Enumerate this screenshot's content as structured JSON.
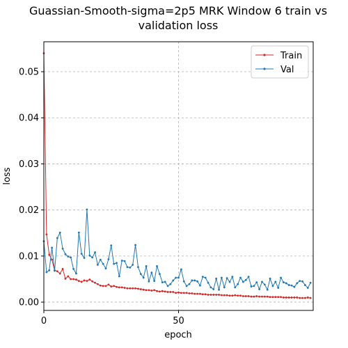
{
  "chart_data": {
    "type": "line",
    "title_lines": [
      "Guassian-Smooth-sigma=2p5 MRK Window 6 train vs",
      "validation loss"
    ],
    "xlabel": "epoch",
    "ylabel": "loss",
    "xlim": [
      0,
      100
    ],
    "ylim": [
      -0.0018,
      0.0565
    ],
    "x_ticks": [
      0,
      50
    ],
    "y_ticks": [
      0.0,
      0.01,
      0.02,
      0.03,
      0.04,
      0.05
    ],
    "x_tick_labels": [
      "0",
      "50"
    ],
    "y_tick_labels": [
      "0.00",
      "0.01",
      "0.02",
      "0.03",
      "0.04",
      "0.05"
    ],
    "grid": true,
    "legend_position": "top-right",
    "series": [
      {
        "name": "Train",
        "color": "#d62728",
        "x": [
          0,
          1,
          2,
          3,
          4,
          5,
          6,
          7,
          8,
          9,
          10,
          11,
          12,
          13,
          14,
          15,
          16,
          17,
          18,
          19,
          20,
          21,
          22,
          23,
          24,
          25,
          26,
          27,
          28,
          29,
          30,
          31,
          32,
          33,
          34,
          35,
          36,
          37,
          38,
          39,
          40,
          41,
          42,
          43,
          44,
          45,
          46,
          47,
          48,
          49,
          50,
          51,
          52,
          53,
          54,
          55,
          56,
          57,
          58,
          59,
          60,
          61,
          62,
          63,
          64,
          65,
          66,
          67,
          68,
          69,
          70,
          71,
          72,
          73,
          74,
          75,
          76,
          77,
          78,
          79,
          80,
          81,
          82,
          83,
          84,
          85,
          86,
          87,
          88,
          89,
          90,
          91,
          92,
          93,
          94,
          95,
          96,
          97,
          98,
          99
        ],
        "values": [
          0.054,
          0.0147,
          0.0103,
          0.0092,
          0.0069,
          0.0067,
          0.0062,
          0.0072,
          0.0051,
          0.0056,
          0.005,
          0.005,
          0.0049,
          0.0046,
          0.0044,
          0.0047,
          0.0046,
          0.0049,
          0.0045,
          0.0042,
          0.0039,
          0.0036,
          0.0035,
          0.0035,
          0.0038,
          0.0034,
          0.0035,
          0.0033,
          0.0032,
          0.0032,
          0.0031,
          0.003,
          0.003,
          0.003,
          0.003,
          0.0029,
          0.0028,
          0.0027,
          0.0026,
          0.0026,
          0.0025,
          0.0026,
          0.0024,
          0.0023,
          0.0024,
          0.0023,
          0.0022,
          0.0022,
          0.0022,
          0.002,
          0.0021,
          0.002,
          0.002,
          0.002,
          0.0019,
          0.0019,
          0.0018,
          0.0018,
          0.0018,
          0.0017,
          0.0017,
          0.0016,
          0.0016,
          0.0016,
          0.0016,
          0.0016,
          0.0015,
          0.0015,
          0.0015,
          0.0014,
          0.0014,
          0.0015,
          0.0014,
          0.0014,
          0.0013,
          0.0013,
          0.0013,
          0.0012,
          0.0012,
          0.0013,
          0.0012,
          0.0012,
          0.0012,
          0.0012,
          0.0011,
          0.0011,
          0.0011,
          0.0011,
          0.0011,
          0.001,
          0.001,
          0.001,
          0.001,
          0.001,
          0.001,
          0.0009,
          0.0009,
          0.0009,
          0.001,
          0.0009
        ]
      },
      {
        "name": "Val",
        "color": "#1f77b4",
        "x": [
          0,
          1,
          2,
          3,
          4,
          5,
          6,
          7,
          8,
          9,
          10,
          11,
          12,
          13,
          14,
          15,
          16,
          17,
          18,
          19,
          20,
          21,
          22,
          23,
          24,
          25,
          26,
          27,
          28,
          29,
          30,
          31,
          32,
          33,
          34,
          35,
          36,
          37,
          38,
          39,
          40,
          41,
          42,
          43,
          44,
          45,
          46,
          47,
          48,
          49,
          50,
          51,
          52,
          53,
          54,
          55,
          56,
          57,
          58,
          59,
          60,
          61,
          62,
          63,
          64,
          65,
          66,
          67,
          68,
          69,
          70,
          71,
          72,
          73,
          74,
          75,
          76,
          77,
          78,
          79,
          80,
          81,
          82,
          83,
          84,
          85,
          86,
          87,
          88,
          89,
          90,
          91,
          92,
          93,
          94,
          95,
          96,
          97,
          98,
          99
        ],
        "values": [
          0.0132,
          0.0065,
          0.0069,
          0.0118,
          0.0068,
          0.0139,
          0.0151,
          0.0116,
          0.0104,
          0.0099,
          0.0097,
          0.0072,
          0.0062,
          0.0151,
          0.0105,
          0.0096,
          0.0201,
          0.0101,
          0.0097,
          0.0108,
          0.0081,
          0.0092,
          0.0083,
          0.0073,
          0.0093,
          0.0123,
          0.0083,
          0.0085,
          0.0056,
          0.009,
          0.0089,
          0.0076,
          0.0075,
          0.0081,
          0.0124,
          0.0076,
          0.0061,
          0.0053,
          0.0078,
          0.0045,
          0.0064,
          0.0046,
          0.0078,
          0.0061,
          0.0043,
          0.0044,
          0.0035,
          0.0039,
          0.0047,
          0.0053,
          0.0053,
          0.0071,
          0.0045,
          0.0035,
          0.0039,
          0.0047,
          0.0047,
          0.0045,
          0.0036,
          0.0055,
          0.0053,
          0.0042,
          0.0032,
          0.0028,
          0.0051,
          0.0027,
          0.0053,
          0.0032,
          0.0052,
          0.0044,
          0.0055,
          0.0032,
          0.0039,
          0.0053,
          0.0044,
          0.0048,
          0.0055,
          0.0034,
          0.0035,
          0.0043,
          0.0028,
          0.0044,
          0.0038,
          0.0027,
          0.0051,
          0.0035,
          0.0044,
          0.0031,
          0.0053,
          0.0043,
          0.0041,
          0.0037,
          0.0036,
          0.0033,
          0.0041,
          0.0046,
          0.0045,
          0.0037,
          0.0031,
          0.0042
        ]
      }
    ]
  }
}
